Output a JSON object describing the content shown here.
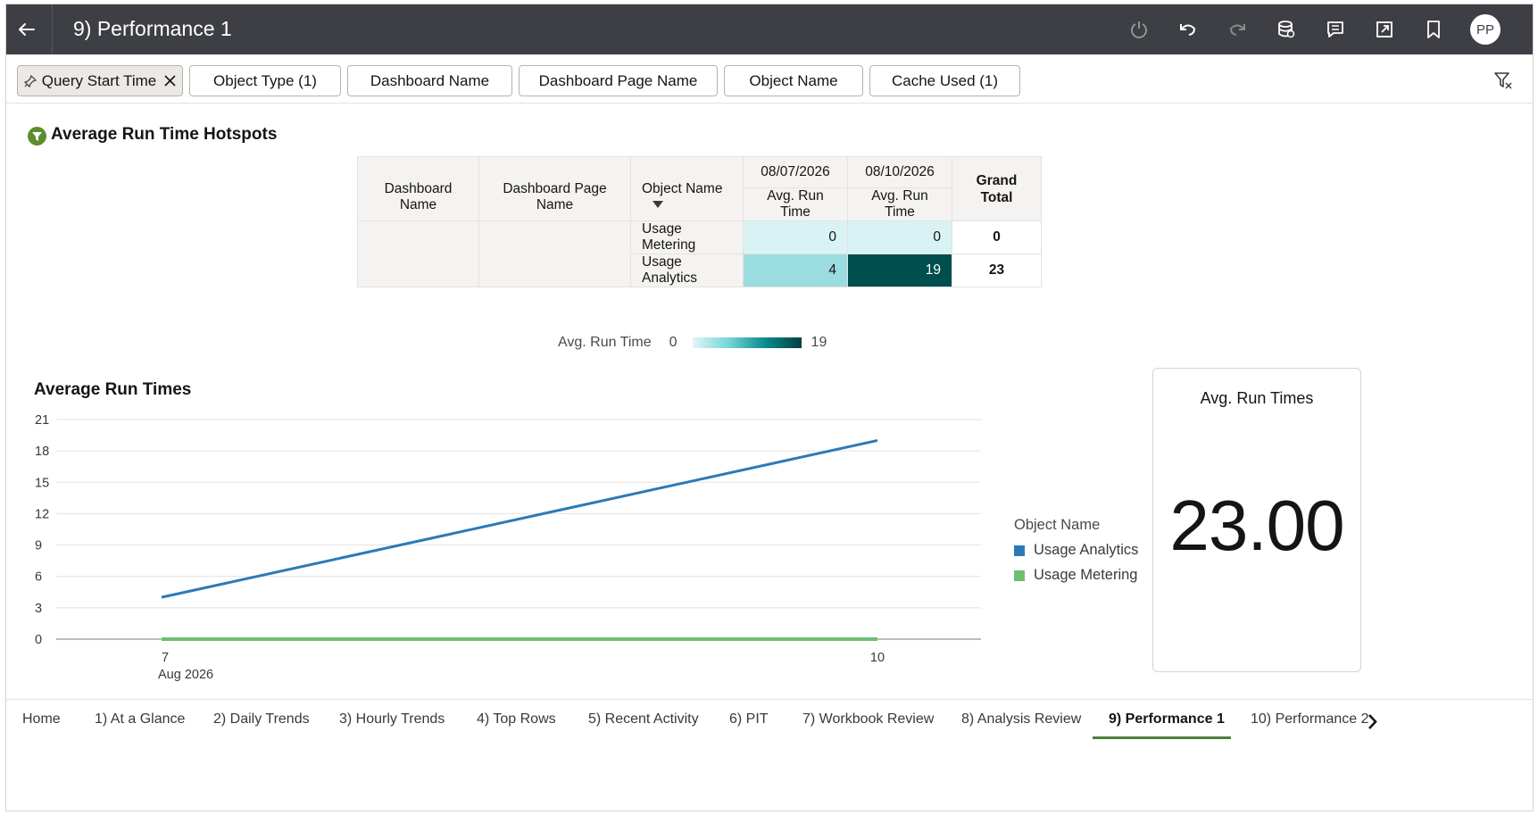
{
  "header": {
    "title": "9) Performance 1",
    "avatar_initials": "PP",
    "icons": [
      "arrow-left-icon",
      "power-icon",
      "undo-icon",
      "redo-icon",
      "database-icon",
      "comment-icon",
      "export-icon",
      "bookmark-icon"
    ]
  },
  "filters": {
    "items": [
      {
        "label": "Query Start Time",
        "pinned": true,
        "active": true
      },
      {
        "label": "Object Type (1)"
      },
      {
        "label": "Dashboard Name"
      },
      {
        "label": "Dashboard Page Name"
      },
      {
        "label": "Object Name"
      },
      {
        "label": "Cache Used (1)"
      }
    ]
  },
  "hotspots": {
    "title": "Average Run Time Hotspots",
    "row_headers": [
      "Dashboard Name",
      "Dashboard Page Name",
      "Object Name"
    ],
    "dates": [
      "08/07/2026",
      "08/10/2026"
    ],
    "measure": "Avg. Run Time",
    "grand_total_label": "Grand Total",
    "rows": [
      {
        "object": "Usage Metering",
        "values": [
          "0",
          "0"
        ],
        "total": "0"
      },
      {
        "object": "Usage Analytics",
        "values": [
          "4",
          "19"
        ],
        "total": "23"
      }
    ],
    "legend": {
      "label": "Avg. Run Time",
      "min": "0",
      "max": "19"
    }
  },
  "line_chart": {
    "title": "Average Run Times",
    "legend_title": "Object Name",
    "colors": {
      "Usage Analytics": "#2b7ab8",
      "Usage Metering": "#6dbf73"
    }
  },
  "chart_data": {
    "type": "line",
    "title": "Average Run Times",
    "xlabel": "",
    "ylabel": "",
    "x": [
      "2026-08-07",
      "2026-08-10"
    ],
    "x_tick_labels": [
      "7",
      "10"
    ],
    "x_subtick_label": "Aug 2026",
    "ylim": [
      0,
      21
    ],
    "y_ticks": [
      0,
      3,
      6,
      9,
      12,
      15,
      18,
      21
    ],
    "grid": true,
    "legend_position": "right",
    "series": [
      {
        "name": "Usage Analytics",
        "values": [
          4,
          19
        ]
      },
      {
        "name": "Usage Metering",
        "values": [
          0,
          0
        ]
      }
    ]
  },
  "kpi": {
    "label": "Avg. Run Times",
    "value": "23.00"
  },
  "tabs": [
    {
      "label": "Home"
    },
    {
      "label": "1) At a Glance"
    },
    {
      "label": "2) Daily Trends"
    },
    {
      "label": "3) Hourly Trends"
    },
    {
      "label": "4)  Top Rows"
    },
    {
      "label": "5) Recent Activity"
    },
    {
      "label": "6) PIT"
    },
    {
      "label": "7) Workbook Review"
    },
    {
      "label": "8) Analysis Review"
    },
    {
      "label": "9) Performance 1",
      "active": true
    },
    {
      "label": "10) Performance 2"
    }
  ]
}
